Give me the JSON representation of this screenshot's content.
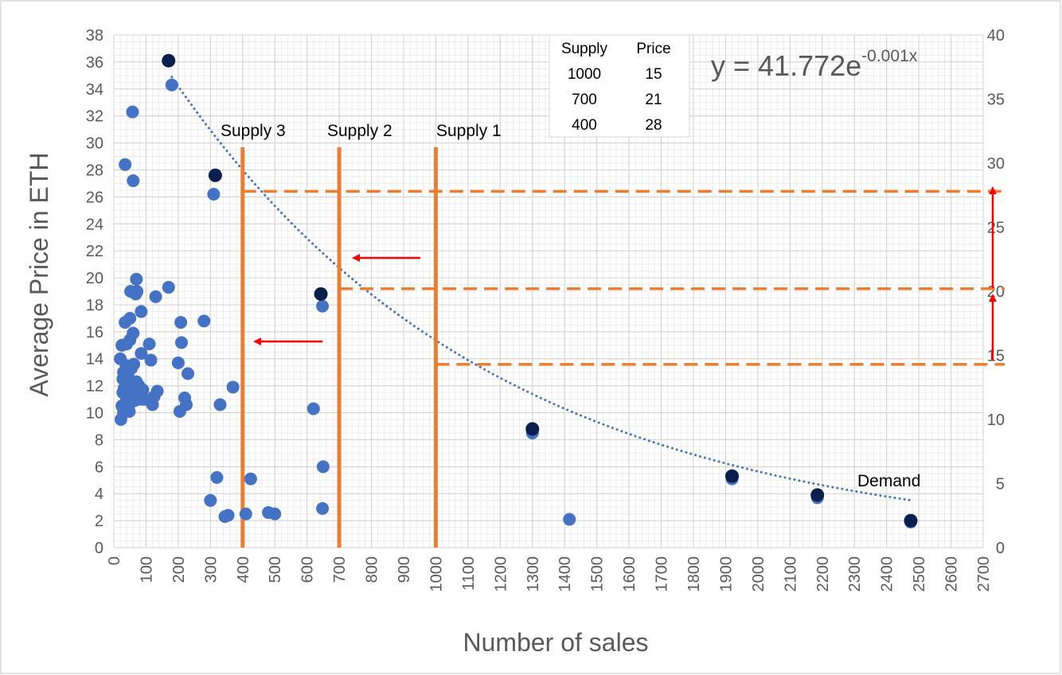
{
  "chart_data": {
    "type": "scatter",
    "xlabel": "Number of sales",
    "ylabel": "Average Price in ETH",
    "xlim": [
      0,
      2700
    ],
    "ylim": [
      0,
      38
    ],
    "xticks": [
      "0",
      "100",
      "200",
      "300",
      "400",
      "500",
      "600",
      "700",
      "800",
      "900",
      "1000",
      "1100",
      "1200",
      "1300",
      "1400",
      "1500",
      "1600",
      "1700",
      "1800",
      "1900",
      "2000",
      "2100",
      "2200",
      "2300",
      "2400",
      "2500",
      "2600",
      "2700"
    ],
    "yticks": [
      "0",
      "2",
      "4",
      "6",
      "8",
      "10",
      "12",
      "14",
      "16",
      "18",
      "20",
      "22",
      "24",
      "26",
      "28",
      "30",
      "32",
      "34",
      "36",
      "38"
    ],
    "y2lim": [
      0,
      40
    ],
    "y2ticks": [
      "0",
      "5",
      "10",
      "15",
      "20",
      "25",
      "30",
      "35",
      "40"
    ],
    "grid": true,
    "colors": {
      "points": "#4472c4",
      "highlight": "#0b1f4d",
      "supply": "#ed7d31",
      "arrow": "#ff0000",
      "trend": "#4472c4"
    },
    "series": [
      {
        "points": [
          [
            20,
            14.0
          ],
          [
            22,
            9.5
          ],
          [
            25,
            15.0
          ],
          [
            25,
            10.5
          ],
          [
            28,
            11.5
          ],
          [
            28,
            12.5
          ],
          [
            30,
            13.0
          ],
          [
            30,
            10.0
          ],
          [
            32,
            11.8
          ],
          [
            32,
            12.8
          ],
          [
            35,
            28.4
          ],
          [
            35,
            16.7
          ],
          [
            35,
            10.3
          ],
          [
            38,
            11.2
          ],
          [
            38,
            13.5
          ],
          [
            40,
            15.1
          ],
          [
            40,
            12.0
          ],
          [
            42,
            10.5
          ],
          [
            45,
            11.8
          ],
          [
            45,
            13.0
          ],
          [
            48,
            10.1
          ],
          [
            48,
            12.5
          ],
          [
            50,
            17.0
          ],
          [
            50,
            15.4
          ],
          [
            52,
            19.0
          ],
          [
            52,
            11.0
          ],
          [
            55,
            13.3
          ],
          [
            55,
            10.8
          ],
          [
            58,
            32.3
          ],
          [
            58,
            12.2
          ],
          [
            60,
            27.2
          ],
          [
            60,
            15.9
          ],
          [
            62,
            11.5
          ],
          [
            62,
            13.6
          ],
          [
            65,
            10.9
          ],
          [
            68,
            18.8
          ],
          [
            70,
            19.9
          ],
          [
            70,
            12.3
          ],
          [
            72,
            19.0
          ],
          [
            75,
            11.0
          ],
          [
            78,
            12.0
          ],
          [
            80,
            11.4
          ],
          [
            85,
            17.5
          ],
          [
            85,
            14.4
          ],
          [
            88,
            11.0
          ],
          [
            90,
            11.7
          ],
          [
            95,
            11.0
          ],
          [
            110,
            15.1
          ],
          [
            115,
            13.9
          ],
          [
            120,
            10.6
          ],
          [
            125,
            11.2
          ],
          [
            130,
            18.6
          ],
          [
            135,
            11.6
          ],
          [
            170,
            19.3
          ],
          [
            180,
            34.3
          ],
          [
            200,
            13.7
          ],
          [
            205,
            10.1
          ],
          [
            208,
            16.7
          ],
          [
            210,
            15.2
          ],
          [
            220,
            11.1
          ],
          [
            225,
            10.6
          ],
          [
            230,
            12.9
          ],
          [
            280,
            16.8
          ],
          [
            300,
            3.5
          ],
          [
            310,
            26.2
          ],
          [
            320,
            5.2
          ],
          [
            330,
            10.6
          ],
          [
            345,
            2.3
          ],
          [
            355,
            2.4
          ],
          [
            370,
            11.9
          ],
          [
            410,
            2.5
          ],
          [
            425,
            5.1
          ],
          [
            480,
            2.6
          ],
          [
            500,
            2.5
          ],
          [
            620,
            10.3
          ],
          [
            648,
            17.9
          ],
          [
            650,
            6.0
          ],
          [
            648,
            2.9
          ],
          [
            1300,
            8.5
          ],
          [
            1415,
            2.1
          ],
          [
            1920,
            5.1
          ],
          [
            2185,
            3.7
          ],
          [
            2475,
            1.9
          ]
        ]
      },
      {
        "points": [
          [
            170,
            36.1
          ],
          [
            315,
            27.6
          ],
          [
            643,
            18.8
          ],
          [
            1300,
            8.8
          ],
          [
            1920,
            5.3
          ],
          [
            2185,
            3.9
          ],
          [
            2475,
            2.0
          ]
        ]
      }
    ],
    "trendline": {
      "a": 41.772,
      "b": -0.001,
      "x_from": 180,
      "x_to": 2480
    },
    "supply_lines": [
      {
        "label": "Supply 3",
        "x": 400,
        "y2_level": 27.8
      },
      {
        "label": "Supply 2",
        "x": 700,
        "y2_level": 20.2
      },
      {
        "label": "Supply 1",
        "x": 1000,
        "y2_level": 14.3
      }
    ],
    "annotations": {
      "equation_base": "y = 41.772e",
      "equation_exponent": "-0.001x",
      "demand_label": "Demand",
      "table": {
        "headers": [
          "Supply",
          "Price"
        ],
        "rows": [
          [
            "1000",
            "15"
          ],
          [
            "700",
            "21"
          ],
          [
            "400",
            "28"
          ]
        ]
      }
    }
  }
}
